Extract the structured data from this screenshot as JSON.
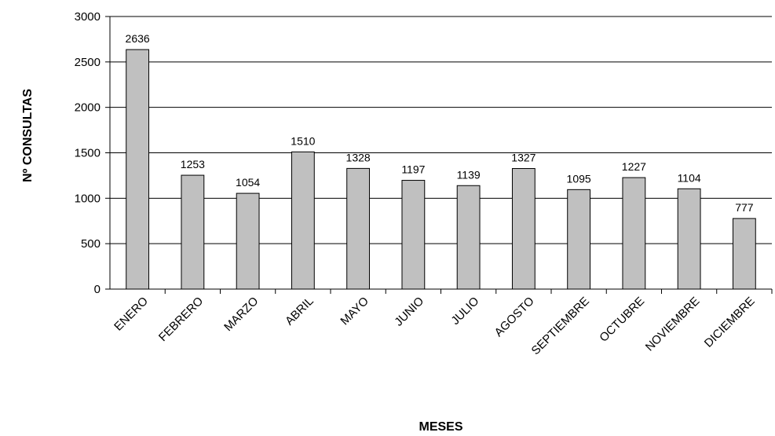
{
  "chart_data": {
    "type": "bar",
    "title": "",
    "xlabel": "MESES",
    "ylabel": "Nº CONSULTAS",
    "ylim": [
      0,
      3000
    ],
    "yticks": [
      "0",
      "500",
      "1000",
      "1500",
      "2000",
      "2500",
      "3000"
    ],
    "grid": true,
    "categories": [
      "ENERO",
      "FEBRERO",
      "MARZO",
      "ABRIL",
      "MAYO",
      "JUNIO",
      "JULIO",
      "AGOSTO",
      "SEPTIEMBRE",
      "OCTUBRE",
      "NOVIEMBRE",
      "DICIEMBRE"
    ],
    "values": [
      2636,
      1253,
      1054,
      1510,
      1328,
      1197,
      1139,
      1327,
      1095,
      1227,
      1104,
      777
    ],
    "data_labels": [
      "2636",
      "1253",
      "1054",
      "1510",
      "1328",
      "1197",
      "1139",
      "1327",
      "1095",
      "1227",
      "1104",
      "777"
    ],
    "colors": {
      "bar_fill": "#c0c0c0",
      "bar_stroke": "#000000",
      "gridline": "#000000",
      "text": "#000000"
    }
  }
}
